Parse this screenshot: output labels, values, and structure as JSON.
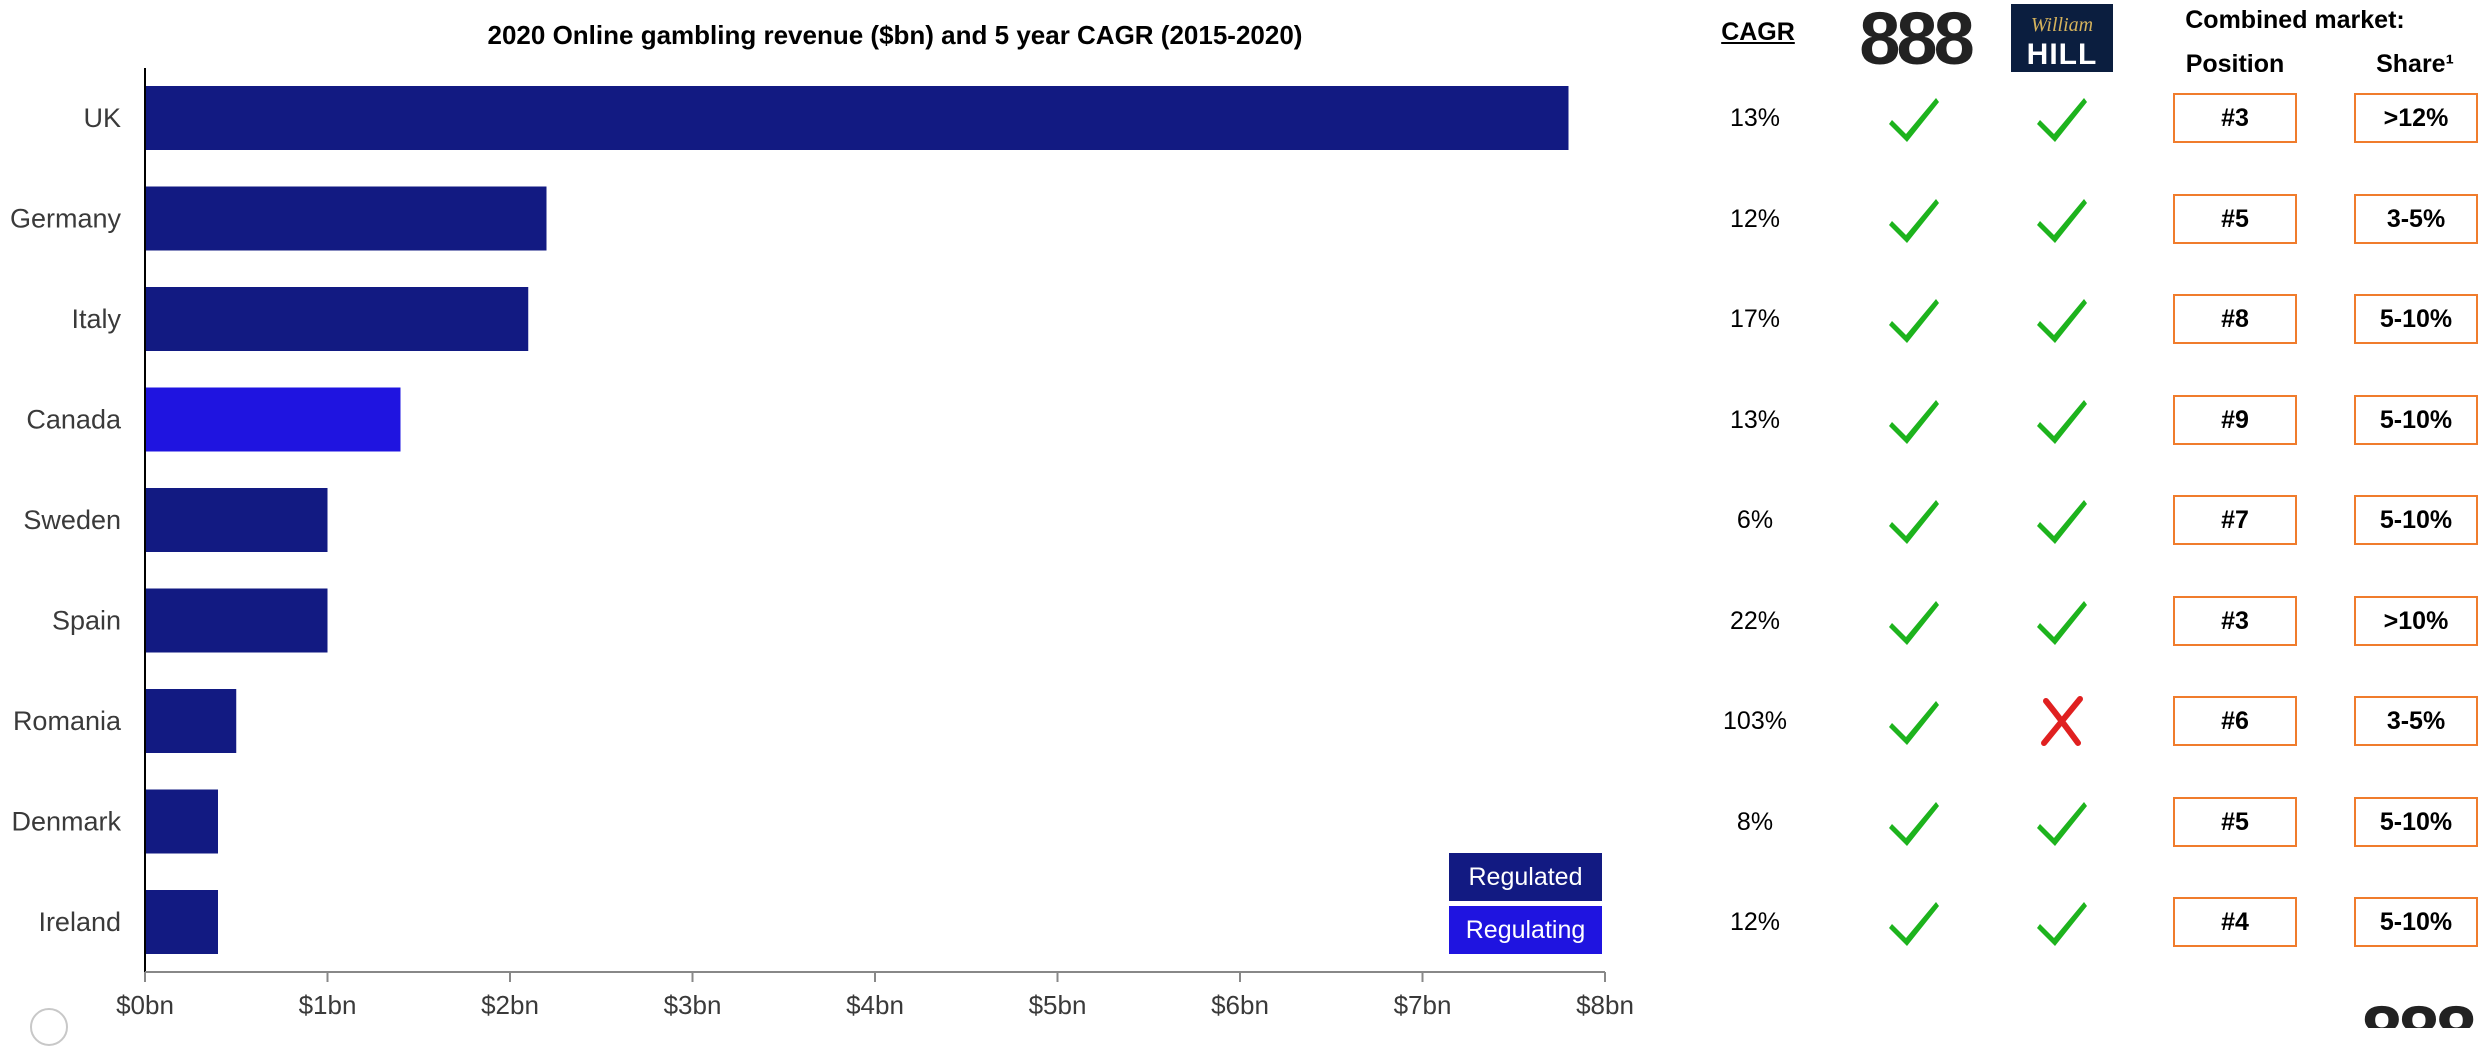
{
  "chart_data": {
    "type": "bar",
    "orientation": "horizontal",
    "title": "2020 Online gambling revenue ($bn) and 5 year CAGR (2015-2020)",
    "categories": [
      "UK",
      "Germany",
      "Italy",
      "Canada",
      "Sweden",
      "Spain",
      "Romania",
      "Denmark",
      "Ireland"
    ],
    "values": [
      7.8,
      2.2,
      2.1,
      1.4,
      1.0,
      1.0,
      0.5,
      0.4,
      0.4
    ],
    "status": [
      "Regulated",
      "Regulated",
      "Regulated",
      "Regulating",
      "Regulated",
      "Regulated",
      "Regulated",
      "Regulated",
      "Regulated"
    ],
    "xlim": [
      0,
      8
    ],
    "xticks": [
      "$0bn",
      "$1bn",
      "$2bn",
      "$3bn",
      "$4bn",
      "$5bn",
      "$6bn",
      "$7bn",
      "$8bn"
    ],
    "grid": false,
    "legend": [
      {
        "label": "Regulated",
        "color": "#121a82"
      },
      {
        "label": "Regulating",
        "color": "#1f14e0"
      }
    ],
    "legend_position": "bottom-right"
  },
  "table": {
    "cagr_header": "CAGR",
    "combined_header": "Combined market:",
    "position_header": "Position",
    "share_header": "Share¹",
    "logos": {
      "brand_888": "888",
      "william_script": "William",
      "william_hill": "HILL"
    },
    "rows": [
      {
        "country": "UK",
        "cagr": "13%",
        "present_888": true,
        "present_wh": true,
        "position": "#3",
        "share": ">12%"
      },
      {
        "country": "Germany",
        "cagr": "12%",
        "present_888": true,
        "present_wh": true,
        "position": "#5",
        "share": "3-5%"
      },
      {
        "country": "Italy",
        "cagr": "17%",
        "present_888": true,
        "present_wh": true,
        "position": "#8",
        "share": "5-10%"
      },
      {
        "country": "Canada",
        "cagr": "13%",
        "present_888": true,
        "present_wh": true,
        "position": "#9",
        "share": "5-10%"
      },
      {
        "country": "Sweden",
        "cagr": "6%",
        "present_888": true,
        "present_wh": true,
        "position": "#7",
        "share": "5-10%"
      },
      {
        "country": "Spain",
        "cagr": "22%",
        "present_888": true,
        "present_wh": true,
        "position": "#3",
        "share": ">10%"
      },
      {
        "country": "Romania",
        "cagr": "103%",
        "present_888": true,
        "present_wh": false,
        "position": "#6",
        "share": "3-5%"
      },
      {
        "country": "Denmark",
        "cagr": "8%",
        "present_888": true,
        "present_wh": true,
        "position": "#5",
        "share": "5-10%"
      },
      {
        "country": "Ireland",
        "cagr": "12%",
        "present_888": true,
        "present_wh": true,
        "position": "#4",
        "share": "5-10%"
      }
    ]
  },
  "colors": {
    "check": "#1db31d",
    "cross": "#e02020",
    "box_border": "#f07c2c",
    "wh_background": "#0b1e3f",
    "wh_text": "#d4b25c"
  },
  "icons": {
    "check": "check-icon",
    "cross": "cross-icon"
  }
}
